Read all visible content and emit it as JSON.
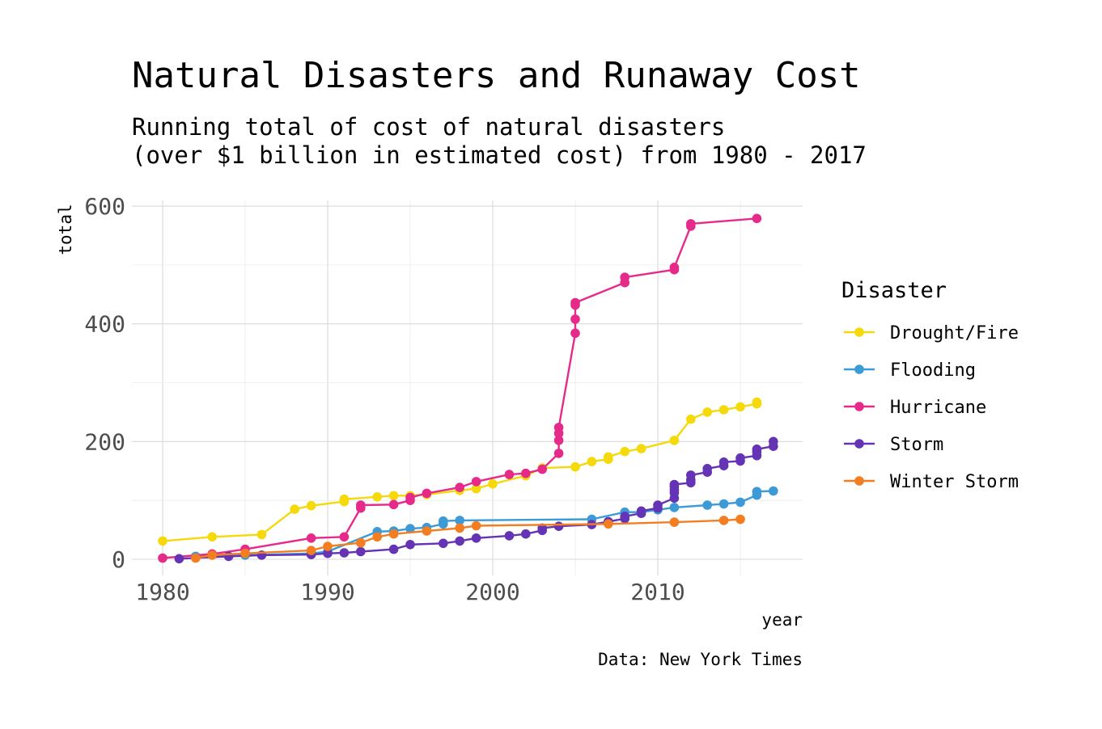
{
  "chart_data": {
    "type": "line",
    "title": "Natural Disasters and Runaway Cost",
    "subtitle_lines": [
      "Running total of cost of natural disasters",
      "(over $1 billion in estimated cost) from 1980 - 2017"
    ],
    "xlabel": "year",
    "ylabel": "total",
    "caption": "Data: New York Times",
    "xlim": [
      1980,
      2017
    ],
    "ylim": [
      0,
      600
    ],
    "x_ticks": [
      1980,
      1990,
      2000,
      2010
    ],
    "y_ticks": [
      0,
      200,
      400,
      600
    ],
    "grid": true,
    "markers": true,
    "legend_title": "Disaster",
    "legend_position": "right",
    "series": [
      {
        "name": "Drought/Fire",
        "color": "#f5d90a",
        "points": [
          [
            1980,
            31
          ],
          [
            1983,
            38
          ],
          [
            1986,
            42
          ],
          [
            1988,
            85
          ],
          [
            1989,
            91
          ],
          [
            1991,
            98
          ],
          [
            1991,
            102
          ],
          [
            1993,
            106
          ],
          [
            1994,
            108
          ],
          [
            1995,
            108
          ],
          [
            1996,
            110
          ],
          [
            1998,
            117
          ],
          [
            1999,
            120
          ],
          [
            2000,
            128
          ],
          [
            2002,
            142
          ],
          [
            2003,
            155
          ],
          [
            2005,
            157
          ],
          [
            2006,
            166
          ],
          [
            2007,
            170
          ],
          [
            2007,
            174
          ],
          [
            2008,
            183
          ],
          [
            2009,
            188
          ],
          [
            2011,
            202
          ],
          [
            2012,
            238
          ],
          [
            2013,
            250
          ],
          [
            2014,
            254
          ],
          [
            2015,
            259
          ],
          [
            2016,
            264
          ],
          [
            2016,
            267
          ]
        ]
      },
      {
        "name": "Flooding",
        "color": "#3c9ad6",
        "points": [
          [
            1982,
            5
          ],
          [
            1985,
            7
          ],
          [
            1989,
            10
          ],
          [
            1990,
            13
          ],
          [
            1993,
            47
          ],
          [
            1994,
            48
          ],
          [
            1995,
            52
          ],
          [
            1996,
            54
          ],
          [
            1997,
            60
          ],
          [
            1997,
            65
          ],
          [
            1998,
            66
          ],
          [
            2006,
            68
          ],
          [
            2008,
            80
          ],
          [
            2009,
            80
          ],
          [
            2010,
            84
          ],
          [
            2011,
            88
          ],
          [
            2013,
            92
          ],
          [
            2014,
            94
          ],
          [
            2015,
            97
          ],
          [
            2016,
            109
          ],
          [
            2016,
            115
          ],
          [
            2017,
            116
          ]
        ]
      },
      {
        "name": "Hurricane",
        "color": "#e62a8a",
        "points": [
          [
            1980,
            2
          ],
          [
            1983,
            9
          ],
          [
            1985,
            17
          ],
          [
            1989,
            36
          ],
          [
            1991,
            38
          ],
          [
            1992,
            87
          ],
          [
            1992,
            92
          ],
          [
            1994,
            93
          ],
          [
            1995,
            100
          ],
          [
            1995,
            105
          ],
          [
            1996,
            112
          ],
          [
            1998,
            122
          ],
          [
            1999,
            132
          ],
          [
            2001,
            144
          ],
          [
            2002,
            146
          ],
          [
            2003,
            153
          ],
          [
            2004,
            180
          ],
          [
            2004,
            202
          ],
          [
            2004,
            214
          ],
          [
            2004,
            224
          ],
          [
            2005,
            384
          ],
          [
            2005,
            408
          ],
          [
            2005,
            432
          ],
          [
            2005,
            436
          ],
          [
            2008,
            470
          ],
          [
            2008,
            479
          ],
          [
            2011,
            492
          ],
          [
            2011,
            496
          ],
          [
            2012,
            566
          ],
          [
            2012,
            570
          ],
          [
            2016,
            579
          ]
        ]
      },
      {
        "name": "Storm",
        "color": "#6434b4",
        "points": [
          [
            1981,
            1
          ],
          [
            1984,
            5
          ],
          [
            1986,
            7
          ],
          [
            1989,
            8
          ],
          [
            1990,
            10
          ],
          [
            1991,
            11
          ],
          [
            1992,
            13
          ],
          [
            1994,
            17
          ],
          [
            1995,
            25
          ],
          [
            1997,
            27
          ],
          [
            1998,
            31
          ],
          [
            1999,
            36
          ],
          [
            2001,
            40
          ],
          [
            2002,
            43
          ],
          [
            2003,
            49
          ],
          [
            2003,
            53
          ],
          [
            2004,
            56
          ],
          [
            2006,
            59
          ],
          [
            2007,
            64
          ],
          [
            2008,
            69
          ],
          [
            2008,
            73
          ],
          [
            2009,
            78
          ],
          [
            2009,
            82
          ],
          [
            2010,
            87
          ],
          [
            2010,
            92
          ],
          [
            2011,
            104
          ],
          [
            2011,
            113
          ],
          [
            2011,
            118
          ],
          [
            2011,
            123
          ],
          [
            2011,
            127
          ],
          [
            2012,
            130
          ],
          [
            2012,
            135
          ],
          [
            2012,
            143
          ],
          [
            2013,
            148
          ],
          [
            2013,
            154
          ],
          [
            2014,
            159
          ],
          [
            2014,
            165
          ],
          [
            2015,
            167
          ],
          [
            2015,
            172
          ],
          [
            2016,
            176
          ],
          [
            2016,
            182
          ],
          [
            2016,
            187
          ],
          [
            2017,
            192
          ],
          [
            2017,
            200
          ]
        ]
      },
      {
        "name": "Winter Storm",
        "color": "#f37e22",
        "points": [
          [
            1982,
            2
          ],
          [
            1983,
            7
          ],
          [
            1985,
            10
          ],
          [
            1989,
            15
          ],
          [
            1990,
            22
          ],
          [
            1992,
            28
          ],
          [
            1993,
            38
          ],
          [
            1994,
            43
          ],
          [
            1996,
            48
          ],
          [
            1998,
            53
          ],
          [
            1999,
            57
          ],
          [
            2007,
            60
          ],
          [
            2011,
            63
          ],
          [
            2014,
            66
          ],
          [
            2015,
            68
          ]
        ]
      }
    ]
  }
}
